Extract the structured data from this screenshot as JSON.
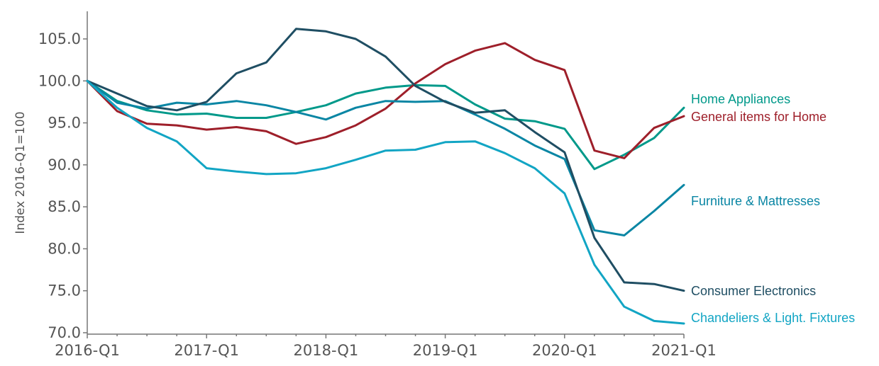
{
  "chart_data": {
    "type": "line",
    "title": "",
    "xlabel": "",
    "ylabel": "Index 2016-Q1=100",
    "ylim": [
      70,
      107
    ],
    "yticks": [
      70.0,
      75.0,
      80.0,
      85.0,
      90.0,
      95.0,
      100.0,
      105.0
    ],
    "ytick_labels": [
      "70.0",
      "75.0",
      "80.0",
      "85.0",
      "90.0",
      "95.0",
      "100.0",
      "105.0"
    ],
    "x": [
      "2016-Q1",
      "2016-Q2",
      "2016-Q3",
      "2016-Q4",
      "2017-Q1",
      "2017-Q2",
      "2017-Q3",
      "2017-Q4",
      "2018-Q1",
      "2018-Q2",
      "2018-Q3",
      "2018-Q4",
      "2019-Q1",
      "2019-Q2",
      "2019-Q3",
      "2019-Q4",
      "2020-Q1",
      "2020-Q2",
      "2020-Q3",
      "2020-Q4",
      "2021-Q1"
    ],
    "xtick_labels": [
      "2016-Q1",
      "2017-Q1",
      "2018-Q1",
      "2019-Q1",
      "2020-Q1",
      "2021-Q1"
    ],
    "grid": false,
    "legend": "inline labels at right end of lines",
    "series": [
      {
        "name": "Home Appliances",
        "color": "#00998a",
        "values": [
          100.0,
          97.6,
          96.5,
          96.0,
          96.1,
          95.6,
          95.6,
          96.3,
          97.1,
          98.5,
          99.2,
          99.5,
          99.4,
          97.2,
          95.5,
          95.2,
          94.3,
          89.5,
          91.2,
          93.2,
          96.8
        ]
      },
      {
        "name": "General items for Home",
        "color": "#9e1f2a",
        "values": [
          100.0,
          96.4,
          94.9,
          94.7,
          94.2,
          94.5,
          94.0,
          92.5,
          93.3,
          94.7,
          96.7,
          99.7,
          102.0,
          103.6,
          104.5,
          102.5,
          101.3,
          91.7,
          90.8,
          94.4,
          95.8
        ]
      },
      {
        "name": "Furniture & Mattresses",
        "color": "#0a86a4",
        "values": [
          100.0,
          97.4,
          96.7,
          97.4,
          97.2,
          97.6,
          97.1,
          96.3,
          95.4,
          96.8,
          97.6,
          97.5,
          97.6,
          96.0,
          94.3,
          92.3,
          90.7,
          82.2,
          81.6,
          84.5,
          87.6
        ]
      },
      {
        "name": "Consumer Electronics",
        "color": "#1f4e63",
        "values": [
          100.0,
          98.5,
          97.0,
          96.5,
          97.5,
          100.9,
          102.2,
          106.2,
          105.9,
          105.0,
          102.9,
          99.4,
          97.5,
          96.2,
          96.5,
          93.9,
          91.5,
          81.3,
          76.0,
          75.8,
          75.0
        ]
      },
      {
        "name": "Chandeliers & Light. Fixtures",
        "color": "#12a5c4",
        "values": [
          100.0,
          96.8,
          94.4,
          92.8,
          89.6,
          89.2,
          88.9,
          89.0,
          89.6,
          90.6,
          91.7,
          91.8,
          92.7,
          92.8,
          91.4,
          89.6,
          86.6,
          78.1,
          73.1,
          71.4,
          71.1
        ]
      }
    ]
  }
}
